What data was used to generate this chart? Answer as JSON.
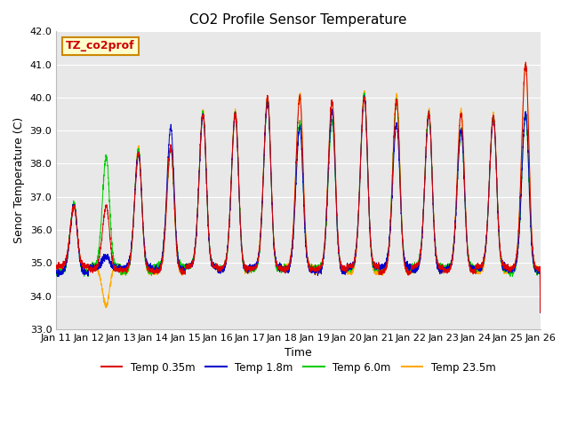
{
  "title": "CO2 Profile Sensor Temperature",
  "xlabel": "Time",
  "ylabel": "Senor Temperature (C)",
  "ylim": [
    33.0,
    42.0
  ],
  "yticks": [
    33.0,
    34.0,
    35.0,
    36.0,
    37.0,
    38.0,
    39.0,
    40.0,
    41.0,
    42.0
  ],
  "xtick_labels": [
    "Jan 11",
    "Jan 12",
    "Jan 13",
    "Jan 14",
    "Jan 15",
    "Jan 16",
    "Jan 17",
    "Jan 18",
    "Jan 19",
    "Jan 20",
    "Jan 21",
    "Jan 22",
    "Jan 23",
    "Jan 24",
    "Jan 25",
    "Jan 26"
  ],
  "legend_labels": [
    "Temp 0.35m",
    "Temp 1.8m",
    "Temp 6.0m",
    "Temp 23.5m"
  ],
  "legend_colors": [
    "#dd0000",
    "#0000cc",
    "#00cc00",
    "#ffaa00"
  ],
  "annotation_text": "TZ_co2prof",
  "annotation_box_facecolor": "#ffffcc",
  "annotation_box_edgecolor": "#cc8800",
  "annotation_text_color": "#cc0000",
  "plot_bg_color": "#e8e8e8",
  "fig_bg_color": "#ffffff",
  "title_fontsize": 11,
  "axis_label_fontsize": 9,
  "tick_fontsize": 8,
  "legend_fontsize": 8.5,
  "linewidth": 0.7,
  "n_days": 15,
  "ppd": 288
}
